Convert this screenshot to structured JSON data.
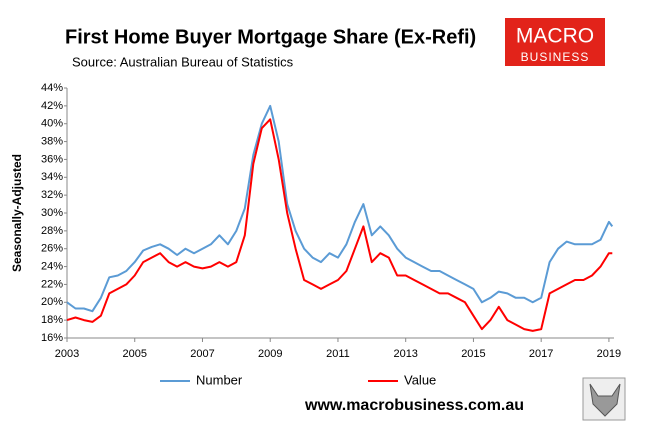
{
  "chart_data": {
    "type": "line",
    "title": "First Home Buyer Mortgage Share (Ex-Refi)",
    "subtitle": "Source: Australian Bureau of Statistics",
    "y_label": "Seasonally-Adjusted",
    "logo": [
      "MACRO",
      "BUSINESS"
    ],
    "footer": "www.macrobusiness.com.au",
    "x": [
      2003.0,
      2003.25,
      2003.5,
      2003.75,
      2004.0,
      2004.25,
      2004.5,
      2004.75,
      2005.0,
      2005.25,
      2005.5,
      2005.75,
      2006.0,
      2006.25,
      2006.5,
      2006.75,
      2007.0,
      2007.25,
      2007.5,
      2007.75,
      2008.0,
      2008.25,
      2008.5,
      2008.75,
      2009.0,
      2009.25,
      2009.5,
      2009.75,
      2010.0,
      2010.25,
      2010.5,
      2010.75,
      2011.0,
      2011.25,
      2011.5,
      2011.75,
      2012.0,
      2012.25,
      2012.5,
      2012.75,
      2013.0,
      2013.25,
      2013.5,
      2013.75,
      2014.0,
      2014.25,
      2014.5,
      2014.75,
      2015.0,
      2015.25,
      2015.5,
      2015.75,
      2016.0,
      2016.25,
      2016.5,
      2016.75,
      2017.0,
      2017.25,
      2017.5,
      2017.75,
      2018.0,
      2018.25,
      2018.5,
      2018.75,
      2019.0,
      2019.1
    ],
    "series": [
      {
        "name": "Number",
        "color": "#5b9bd5",
        "values": [
          20.0,
          19.3,
          19.3,
          19.0,
          20.5,
          22.8,
          23.0,
          23.5,
          24.5,
          25.8,
          26.2,
          26.5,
          26.0,
          25.3,
          26.0,
          25.5,
          26.0,
          26.5,
          27.5,
          26.5,
          28.0,
          30.5,
          36.5,
          40.0,
          42.0,
          38.0,
          31.0,
          28.0,
          26.0,
          25.0,
          24.5,
          25.5,
          25.0,
          26.5,
          29.0,
          31.0,
          27.5,
          28.5,
          27.5,
          26.0,
          25.0,
          24.5,
          24.0,
          23.5,
          23.5,
          23.0,
          22.5,
          22.0,
          21.5,
          20.0,
          20.5,
          21.2,
          21.0,
          20.5,
          20.5,
          20.0,
          20.5,
          24.5,
          26.0,
          26.8,
          26.5,
          26.5,
          26.5,
          27.0,
          29.0,
          28.5
        ]
      },
      {
        "name": "Value",
        "color": "#ff0000",
        "values": [
          18.0,
          18.3,
          18.0,
          17.8,
          18.5,
          21.0,
          21.5,
          22.0,
          23.0,
          24.5,
          25.0,
          25.5,
          24.5,
          24.0,
          24.5,
          24.0,
          23.8,
          24.0,
          24.5,
          24.0,
          24.5,
          27.5,
          35.5,
          39.5,
          40.5,
          36.0,
          30.0,
          26.0,
          22.5,
          22.0,
          21.5,
          22.0,
          22.5,
          23.5,
          26.0,
          28.5,
          24.5,
          25.5,
          25.0,
          23.0,
          23.0,
          22.5,
          22.0,
          21.5,
          21.0,
          21.0,
          20.5,
          20.0,
          18.5,
          17.0,
          18.0,
          19.5,
          18.0,
          17.5,
          17.0,
          16.8,
          17.0,
          21.0,
          21.5,
          22.0,
          22.5,
          22.5,
          23.0,
          24.0,
          25.5,
          25.5
        ]
      }
    ],
    "xlim": [
      2003,
      2019.15
    ],
    "xticks": [
      2003,
      2005,
      2007,
      2009,
      2011,
      2013,
      2015,
      2017,
      2019
    ],
    "ylim": [
      16,
      44
    ],
    "yticks": [
      {
        "value": 16,
        "label": "16%"
      },
      {
        "value": 18,
        "label": "18%"
      },
      {
        "value": 20,
        "label": "20%"
      },
      {
        "value": 22,
        "label": "22%"
      },
      {
        "value": 24,
        "label": "24%"
      },
      {
        "value": 26,
        "label": "26%"
      },
      {
        "value": 28,
        "label": "28%"
      },
      {
        "value": 30,
        "label": "30%"
      },
      {
        "value": 32,
        "label": "32%"
      },
      {
        "value": 34,
        "label": "34%"
      },
      {
        "value": 36,
        "label": "36%"
      },
      {
        "value": 38,
        "label": "38%"
      },
      {
        "value": 40,
        "label": "40%"
      },
      {
        "value": 42,
        "label": "42%"
      },
      {
        "value": 44,
        "label": "44%"
      }
    ],
    "grid": false
  }
}
